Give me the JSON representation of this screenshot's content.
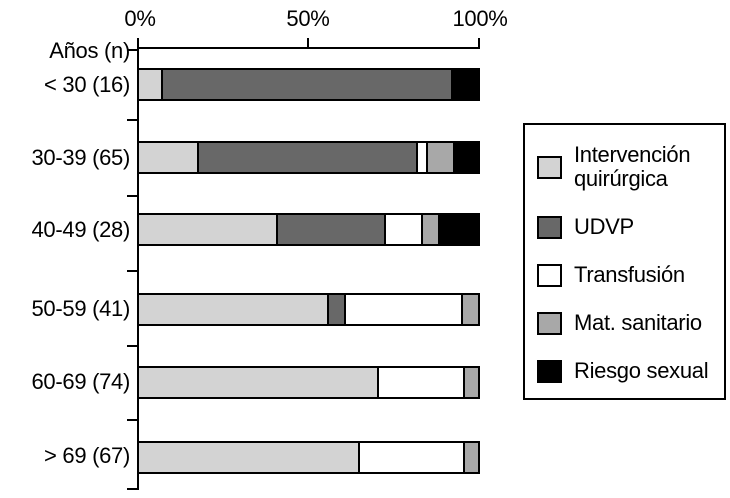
{
  "chart_data": {
    "type": "bar",
    "orientation": "horizontal",
    "stacked": true,
    "axis_title": "Años (n)",
    "x_tick_labels": [
      "0%",
      "50%",
      "100%"
    ],
    "x_range": [
      0,
      100
    ],
    "x_unit": "%",
    "grid": false,
    "legend_position": "right",
    "categories": [
      "< 30 (16)",
      "30-39 (65)",
      "40-49 (28)",
      "50-59 (41)",
      "60-69 (74)",
      "> 69 (67)"
    ],
    "series": [
      {
        "name": "Intervención quirúrgica",
        "label": "Intervención\nquirúrgica",
        "color": "#d3d3d3",
        "values": [
          6.5,
          17.5,
          41.5,
          56.5,
          71,
          65.5
        ]
      },
      {
        "name": "UDVP",
        "label": "UDVP",
        "color": "#686868",
        "values": [
          86,
          65.5,
          32,
          4.5,
          0,
          0
        ]
      },
      {
        "name": "Transfusión",
        "label": "Transfusión",
        "color": "#ffffff",
        "values": [
          0,
          2.5,
          10.5,
          34.5,
          25,
          30.5
        ]
      },
      {
        "name": "Mat. sanitario",
        "label": "Mat. sanitario",
        "color": "#a8a8a8",
        "values": [
          0,
          7.5,
          4.5,
          4.5,
          4,
          4
        ]
      },
      {
        "name": "Riesgo sexual",
        "label": "Riesgo sexual",
        "color": "#000000",
        "values": [
          7.5,
          7,
          11.5,
          0,
          0,
          0
        ]
      }
    ],
    "colors": {
      "axis": "#000000",
      "background": "#ffffff",
      "text": "#000000"
    }
  }
}
